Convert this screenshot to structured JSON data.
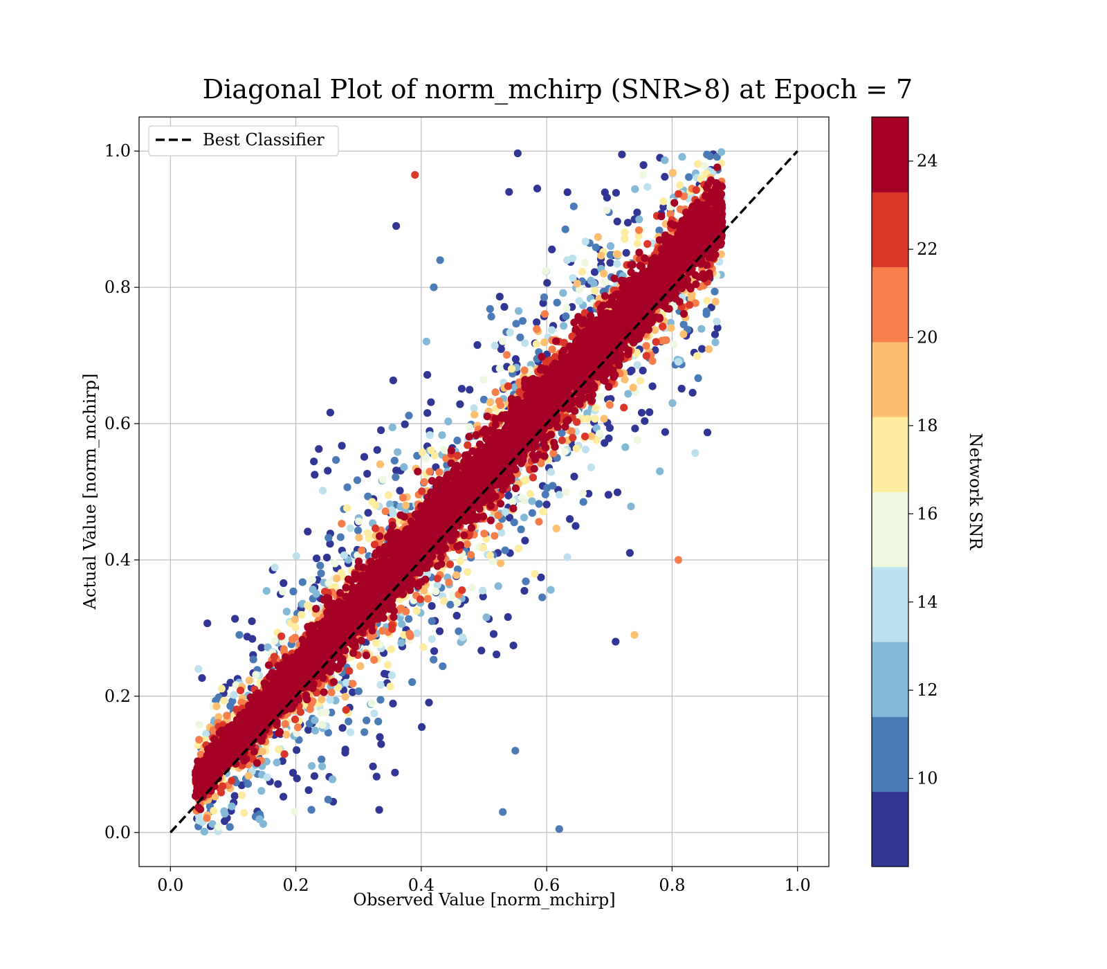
{
  "chart_data": {
    "type": "scatter",
    "title": "Diagonal Plot of norm_mchirp (SNR>8) at Epoch = 7",
    "xlabel": "Observed Value [norm_mchirp]",
    "ylabel": "Actual Value [norm_mchirp]",
    "xlim": [
      -0.05,
      1.05
    ],
    "ylim": [
      -0.05,
      1.05
    ],
    "x_ticks": [
      "0.0",
      "0.2",
      "0.4",
      "0.6",
      "0.8",
      "1.0"
    ],
    "y_ticks": [
      "0.0",
      "0.2",
      "0.4",
      "0.6",
      "0.8",
      "1.0"
    ],
    "grid": true,
    "legend": {
      "placement": "upper-left",
      "entries": [
        "Best Classifier"
      ]
    },
    "reference_line": {
      "name": "Best Classifier",
      "style": "dashed",
      "color": "#000000",
      "x": [
        0,
        1
      ],
      "y": [
        0,
        1
      ]
    },
    "point_distribution": {
      "description_source": "visible scatter cloud along the diagonal",
      "x_range": [
        0.04,
        0.88
      ],
      "y_range": [
        0.0,
        1.0
      ],
      "approx_point_count": 9000
    },
    "outliers": [
      {
        "x": 0.39,
        "y": 0.965,
        "snr": 22
      },
      {
        "x": 0.36,
        "y": 0.89,
        "snr": 8
      },
      {
        "x": 0.43,
        "y": 0.84,
        "snr": 10
      },
      {
        "x": 0.42,
        "y": 0.8,
        "snr": 10
      },
      {
        "x": 0.23,
        "y": 0.525,
        "snr": 8
      },
      {
        "x": 0.81,
        "y": 0.4,
        "snr": 21
      },
      {
        "x": 0.74,
        "y": 0.29,
        "snr": 19
      },
      {
        "x": 0.71,
        "y": 0.28,
        "snr": 8
      },
      {
        "x": 0.62,
        "y": 0.005,
        "snr": 10
      },
      {
        "x": 0.53,
        "y": 0.03,
        "snr": 11
      },
      {
        "x": 0.13,
        "y": 0.31,
        "snr": 8
      },
      {
        "x": 0.11,
        "y": 0.29,
        "snr": 11
      },
      {
        "x": 0.55,
        "y": 0.12,
        "snr": 11
      },
      {
        "x": 0.72,
        "y": 0.995,
        "snr": 8
      },
      {
        "x": 0.54,
        "y": 0.94,
        "snr": 8
      },
      {
        "x": 0.585,
        "y": 0.945,
        "snr": 8
      }
    ],
    "colorbar": {
      "label": "Network SNR",
      "vmin": 8,
      "vmax": 25,
      "ticks": [
        "10",
        "12",
        "14",
        "16",
        "18",
        "20",
        "22",
        "24"
      ],
      "tick_values": [
        10,
        12,
        14,
        16,
        18,
        20,
        22,
        24
      ],
      "colormap": "RdYlBu_r",
      "colors": [
        "#313695",
        "#4575b4",
        "#74add1",
        "#abd9e9",
        "#e0f3f8",
        "#fee090",
        "#fdae61",
        "#f46d43",
        "#d73027",
        "#a50026"
      ],
      "level_colors": [
        "#313695",
        "#4a7bb7",
        "#83b8d7",
        "#bde2ee",
        "#eef8e0",
        "#feeda0",
        "#fdbe70",
        "#f67e4b",
        "#da372a",
        "#a50026"
      ]
    }
  }
}
